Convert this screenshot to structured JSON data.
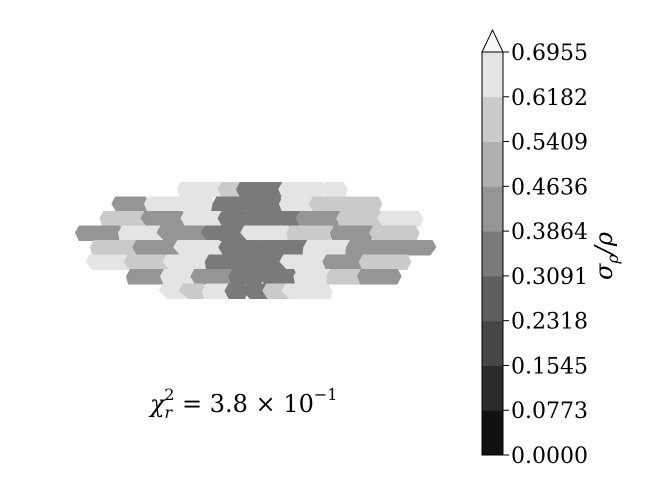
{
  "chart_data": {
    "type": "heatmap",
    "annotation": {
      "chi_symbol": "χ",
      "chi_sub": "r",
      "chi_sup": "2",
      "chi_rest": " = 3.8 × 10",
      "chi_exp": "−1"
    },
    "colorbar": {
      "label_main": "σ",
      "label_sub": "ρ",
      "label_rest": "/ρ",
      "levels": [
        0.0,
        0.0773,
        0.1545,
        0.2318,
        0.3091,
        0.3864,
        0.4636,
        0.5409,
        0.6182,
        0.6955
      ],
      "tick_labels": [
        "0.0000",
        "0.0773",
        "0.1545",
        "0.2318",
        "0.3091",
        "0.3864",
        "0.4636",
        "0.5409",
        "0.6182",
        "0.6955"
      ],
      "colors": [
        "#111111",
        "#2b2b2b",
        "#464646",
        "#5f5f5f",
        "#7a7a7a",
        "#959595",
        "#b0b0b0",
        "#cacaca",
        "#e4e4e4",
        "#f7f7f7"
      ],
      "extend": "max"
    },
    "field_rows": [
      {
        "values": [
          0.62,
          0.62,
          0.55,
          0.38,
          0.38,
          0.62,
          0.62,
          0.62
        ]
      },
      {
        "values": [
          0.46,
          0.62,
          0.62,
          0.31,
          0.31,
          0.62,
          0.55,
          0.55
        ]
      },
      {
        "values": [
          0.55,
          0.46,
          0.62,
          0.31,
          0.31,
          0.46,
          0.55,
          0.62
        ]
      },
      {
        "values": [
          0.46,
          0.62,
          0.46,
          0.31,
          0.62,
          0.55,
          0.46,
          0.55
        ]
      },
      {
        "values": [
          0.55,
          0.46,
          0.62,
          0.31,
          0.31,
          0.62,
          0.46,
          0.46
        ]
      },
      {
        "values": [
          0.62,
          0.55,
          0.62,
          0.31,
          0.31,
          0.62,
          0.46,
          0.55
        ]
      },
      {
        "values": [
          0.46,
          0.62,
          0.46,
          0.38,
          0.38,
          0.62,
          0.55,
          0.46
        ]
      },
      {
        "values": [
          0.62,
          0.55,
          0.62,
          0.31,
          0.31,
          0.55,
          0.62,
          0.62
        ]
      }
    ]
  }
}
